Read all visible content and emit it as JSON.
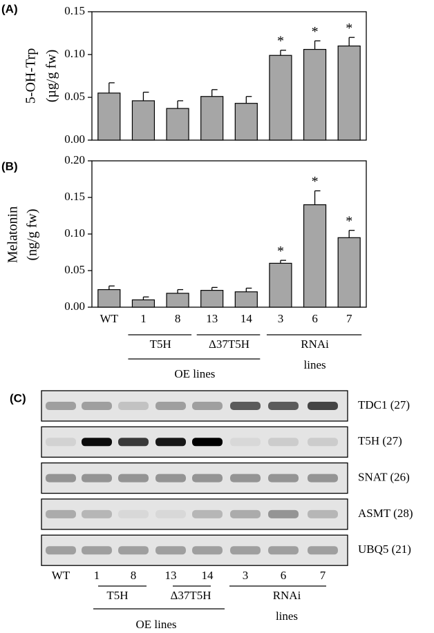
{
  "chart_data": [
    {
      "type": "bar",
      "panel": "(A)",
      "y_label": [
        "5-OH-Trp",
        "(µg/g fw)"
      ],
      "values": [
        0.055,
        0.046,
        0.037,
        0.051,
        0.043,
        0.099,
        0.106,
        0.11
      ],
      "errors": [
        0.012,
        0.01,
        0.009,
        0.008,
        0.008,
        0.006,
        0.01,
        0.01
      ],
      "significance": [
        null,
        null,
        null,
        null,
        null,
        "*",
        "*",
        "*"
      ],
      "color": "#a6a6a6",
      "ylim": [
        0,
        0.15
      ],
      "yticks": [
        {
          "value": 0,
          "label": "0.00"
        },
        0.05,
        {
          "value": 0.1,
          "label": "0.10"
        },
        0.15
      ]
    },
    {
      "type": "bar",
      "panel": "(B)",
      "y_label": [
        "Melatonin",
        "(ng/g fw)"
      ],
      "categories": [
        "WT",
        "1",
        "8",
        "13",
        "14",
        "3",
        "6",
        "7"
      ],
      "values": [
        0.024,
        0.01,
        0.019,
        0.023,
        0.021,
        0.06,
        0.14,
        0.095
      ],
      "errors": [
        0.005,
        0.004,
        0.005,
        0.004,
        0.005,
        0.004,
        0.019,
        0.01
      ],
      "significance": [
        null,
        null,
        null,
        null,
        null,
        "*",
        "*",
        "*"
      ],
      "color": "#a6a6a6",
      "ylim": [
        0,
        0.2
      ],
      "yticks": [
        {
          "value": 0,
          "label": "0.00"
        },
        0.05,
        {
          "value": 0.1,
          "label": "0.10"
        },
        0.15,
        {
          "value": 0.2,
          "label": "0.20"
        }
      ],
      "groups": [
        "T5H",
        "Δ37T5H",
        "OE lines"
      ],
      "rnai_group": [
        "RNAi",
        "lines"
      ]
    }
  ],
  "gel": {
    "panel": "(C)",
    "rows": [
      "TDC1 (27)",
      "T5H (27)",
      "SNAT (26)",
      "ASMT (28)",
      "UBQ5 (21)"
    ],
    "lanes": [
      "WT",
      "1",
      "8",
      "13",
      "14",
      "3",
      "6",
      "7"
    ],
    "groups": [
      "T5H",
      "Δ37T5H",
      "OE lines"
    ],
    "rnai_group": [
      "RNAi",
      "lines"
    ]
  }
}
